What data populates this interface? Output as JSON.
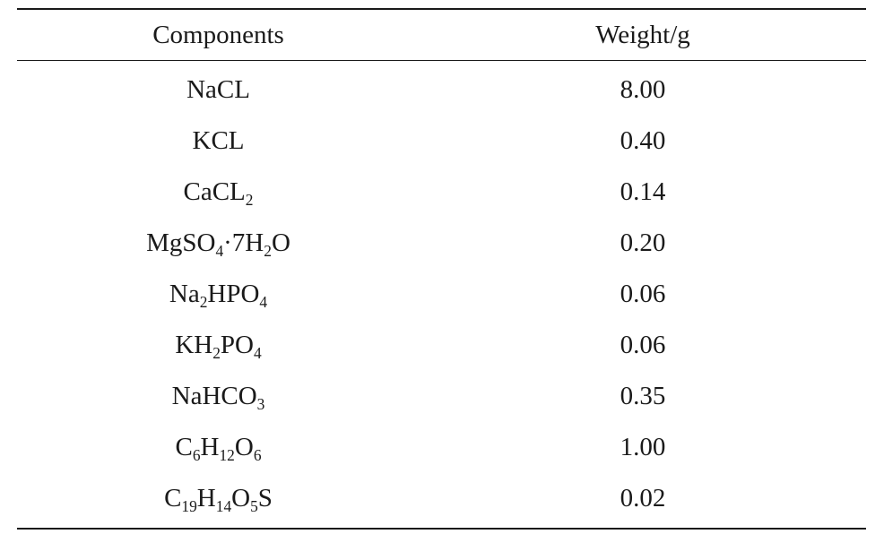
{
  "table": {
    "headers": {
      "component": "Components",
      "weight": "Weight/g"
    },
    "rows": [
      {
        "component": [
          {
            "t": "NaCL"
          }
        ],
        "weight": "8.00"
      },
      {
        "component": [
          {
            "t": "KCL"
          }
        ],
        "weight": "0.40"
      },
      {
        "component": [
          {
            "t": "CaCL"
          },
          {
            "t": "2",
            "sub": true
          }
        ],
        "weight": "0.14"
      },
      {
        "component": [
          {
            "t": "MgSO"
          },
          {
            "t": "4",
            "sub": true
          },
          {
            "t": "·7H"
          },
          {
            "t": "2",
            "sub": true
          },
          {
            "t": "O"
          }
        ],
        "weight": "0.20"
      },
      {
        "component": [
          {
            "t": "Na"
          },
          {
            "t": "2",
            "sub": true
          },
          {
            "t": "HPO"
          },
          {
            "t": "4",
            "sub": true
          }
        ],
        "weight": "0.06"
      },
      {
        "component": [
          {
            "t": "KH"
          },
          {
            "t": "2",
            "sub": true
          },
          {
            "t": "PO"
          },
          {
            "t": "4",
            "sub": true
          }
        ],
        "weight": "0.06"
      },
      {
        "component": [
          {
            "t": "NaHCO"
          },
          {
            "t": "3",
            "sub": true
          }
        ],
        "weight": "0.35"
      },
      {
        "component": [
          {
            "t": "C"
          },
          {
            "t": "6",
            "sub": true
          },
          {
            "t": "H"
          },
          {
            "t": "12",
            "sub": true
          },
          {
            "t": "O"
          },
          {
            "t": "6",
            "sub": true
          }
        ],
        "weight": "1.00"
      },
      {
        "component": [
          {
            "t": "C"
          },
          {
            "t": "19",
            "sub": true
          },
          {
            "t": "H"
          },
          {
            "t": "14",
            "sub": true
          },
          {
            "t": "O"
          },
          {
            "t": "5",
            "sub": true
          },
          {
            "t": "S"
          }
        ],
        "weight": "0.02"
      }
    ]
  }
}
